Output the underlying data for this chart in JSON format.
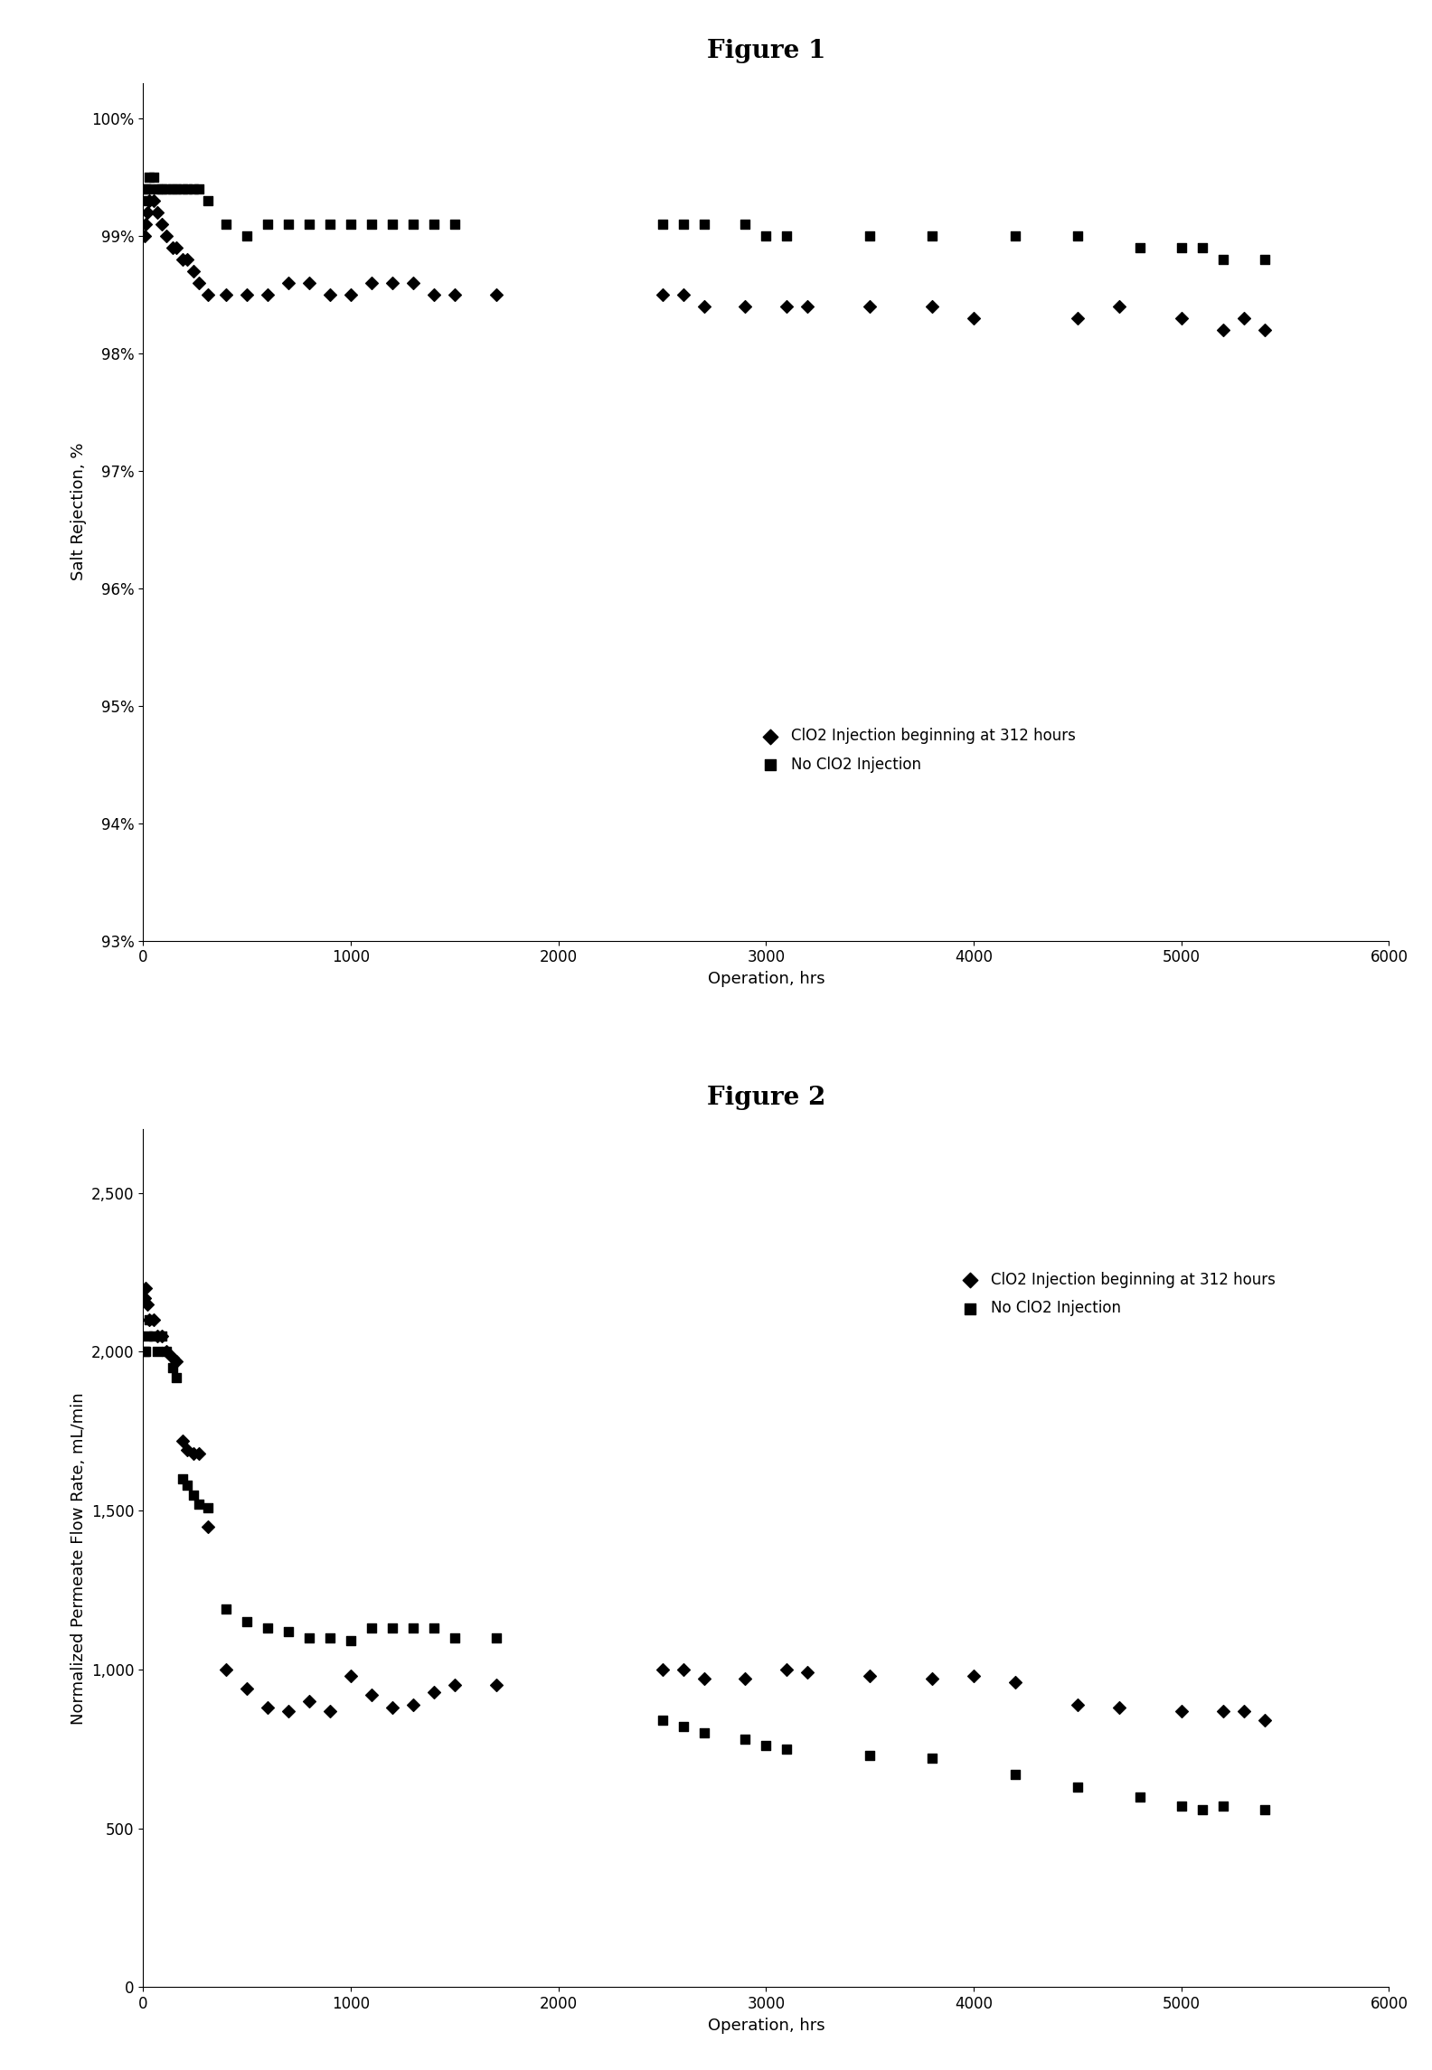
{
  "fig1": {
    "title": "Figure 1",
    "xlabel": "Operation, hrs",
    "ylabel": "Salt Rejection, %",
    "xlim": [
      0,
      6000
    ],
    "ylim": [
      0.93,
      1.003
    ],
    "yticks": [
      0.93,
      0.94,
      0.95,
      0.96,
      0.97,
      0.98,
      0.99,
      1.0
    ],
    "xticks": [
      0,
      1000,
      2000,
      3000,
      4000,
      5000,
      6000
    ],
    "series1_label": "ClO2 Injection beginning at 312 hours",
    "series2_label": "No ClO2 Injection",
    "series1_x": [
      5,
      10,
      20,
      30,
      50,
      70,
      90,
      110,
      140,
      160,
      190,
      210,
      240,
      270,
      310,
      400,
      500,
      600,
      700,
      800,
      900,
      1000,
      1100,
      1200,
      1300,
      1400,
      1500,
      1700,
      2500,
      2600,
      2700,
      2900,
      3100,
      3200,
      3500,
      3800,
      4000,
      4500,
      4700,
      5000,
      5200,
      5300,
      5400
    ],
    "series1_y": [
      0.99,
      0.991,
      0.992,
      0.993,
      0.993,
      0.992,
      0.991,
      0.99,
      0.989,
      0.989,
      0.988,
      0.988,
      0.987,
      0.986,
      0.985,
      0.985,
      0.985,
      0.985,
      0.986,
      0.986,
      0.985,
      0.985,
      0.986,
      0.986,
      0.986,
      0.985,
      0.985,
      0.985,
      0.985,
      0.985,
      0.984,
      0.984,
      0.984,
      0.984,
      0.984,
      0.984,
      0.983,
      0.983,
      0.984,
      0.983,
      0.982,
      0.983,
      0.982
    ],
    "series2_x": [
      5,
      10,
      20,
      30,
      50,
      70,
      90,
      110,
      140,
      160,
      190,
      210,
      240,
      270,
      310,
      400,
      500,
      600,
      700,
      800,
      900,
      1000,
      1100,
      1200,
      1300,
      1400,
      1500,
      2500,
      2600,
      2700,
      2900,
      3000,
      3100,
      3500,
      3800,
      4200,
      4500,
      4800,
      5000,
      5100,
      5200,
      5400
    ],
    "series2_y": [
      0.993,
      0.994,
      0.994,
      0.995,
      0.995,
      0.994,
      0.994,
      0.994,
      0.994,
      0.994,
      0.994,
      0.994,
      0.994,
      0.994,
      0.993,
      0.991,
      0.99,
      0.991,
      0.991,
      0.991,
      0.991,
      0.991,
      0.991,
      0.991,
      0.991,
      0.991,
      0.991,
      0.991,
      0.991,
      0.991,
      0.991,
      0.99,
      0.99,
      0.99,
      0.99,
      0.99,
      0.99,
      0.989,
      0.989,
      0.989,
      0.988,
      0.988
    ]
  },
  "fig2": {
    "title": "Figure 2",
    "xlabel": "Operation, hrs",
    "ylabel": "Normalized Permeate Flow Rate, mL/min",
    "xlim": [
      0,
      6000
    ],
    "ylim": [
      0,
      2700
    ],
    "yticks": [
      0,
      500,
      1000,
      1500,
      2000,
      2500
    ],
    "xticks": [
      0,
      1000,
      2000,
      3000,
      4000,
      5000,
      6000
    ],
    "series1_label": "ClO2 Injection beginning at 312 hours",
    "series2_label": "No ClO2 Injection",
    "series1_x": [
      5,
      10,
      20,
      30,
      50,
      70,
      90,
      110,
      140,
      160,
      190,
      210,
      240,
      270,
      310,
      400,
      500,
      600,
      700,
      800,
      900,
      1000,
      1100,
      1200,
      1300,
      1400,
      1500,
      1700,
      2500,
      2600,
      2700,
      2900,
      3100,
      3200,
      3500,
      3800,
      4000,
      4200,
      4500,
      4700,
      5000,
      5200,
      5300,
      5400
    ],
    "series1_y": [
      2170,
      2200,
      2150,
      2100,
      2100,
      2050,
      2050,
      2000,
      1980,
      1970,
      1720,
      1690,
      1680,
      1680,
      1450,
      1000,
      940,
      880,
      870,
      900,
      870,
      980,
      920,
      880,
      890,
      930,
      950,
      950,
      1000,
      1000,
      970,
      970,
      1000,
      990,
      980,
      970,
      980,
      960,
      890,
      880,
      870,
      870,
      870,
      840
    ],
    "series2_x": [
      5,
      10,
      20,
      30,
      50,
      70,
      90,
      110,
      140,
      160,
      190,
      210,
      240,
      270,
      310,
      400,
      500,
      600,
      700,
      800,
      900,
      1000,
      1100,
      1200,
      1300,
      1400,
      1500,
      1700,
      2500,
      2600,
      2700,
      2900,
      3000,
      3100,
      3500,
      3800,
      4200,
      4500,
      4800,
      5000,
      5100,
      5200,
      5400
    ],
    "series2_y": [
      2000,
      2000,
      2050,
      2100,
      2050,
      2000,
      2050,
      2000,
      1950,
      1920,
      1600,
      1580,
      1550,
      1520,
      1510,
      1190,
      1150,
      1130,
      1120,
      1100,
      1100,
      1090,
      1130,
      1130,
      1130,
      1130,
      1100,
      1100,
      840,
      820,
      800,
      780,
      760,
      750,
      730,
      720,
      670,
      630,
      600,
      570,
      560,
      570,
      560
    ]
  },
  "marker_size": 7,
  "marker_color": "#000000",
  "figure_label_fontsize": 20,
  "axis_label_fontsize": 13,
  "tick_fontsize": 12,
  "legend_fontsize": 12,
  "background_color": "#ffffff"
}
